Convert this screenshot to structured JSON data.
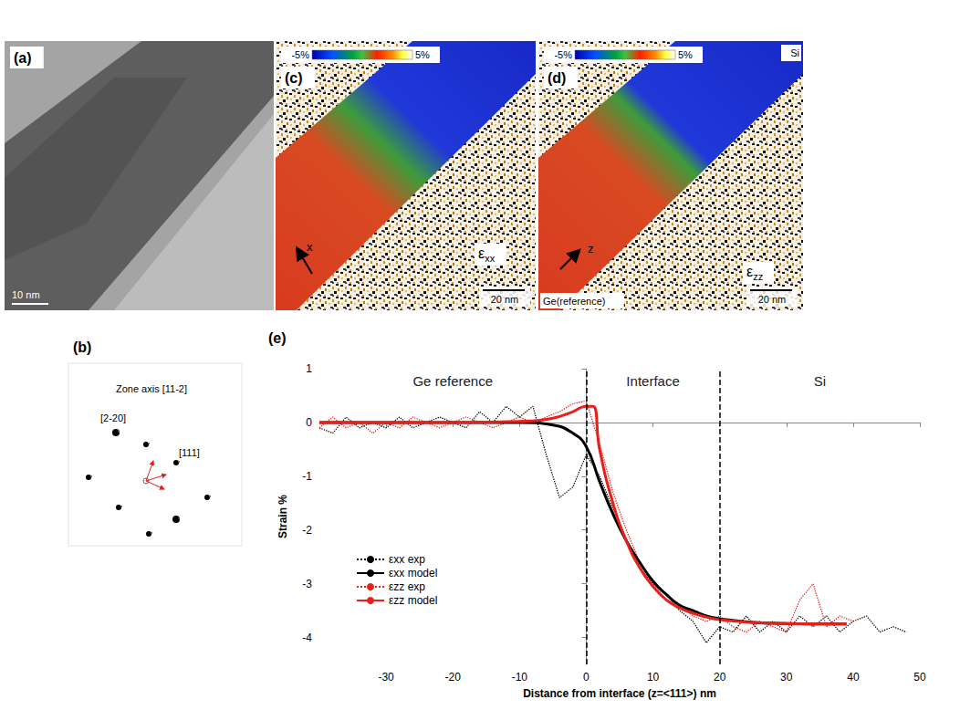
{
  "panels": {
    "a": {
      "label": "(a)",
      "scale_bar": "10 nm"
    },
    "b": {
      "label": "(b)",
      "title": "Zone axis [11-2]",
      "spot_labels": [
        "[2-20]",
        "[111]"
      ]
    },
    "c": {
      "label": "(c)",
      "colorbar": {
        "range": [
          -5,
          5
        ],
        "ticks": [
          {
            "value": -5,
            "label": "-5%"
          },
          {
            "value": 5,
            "label": "5%"
          }
        ]
      },
      "arrow": "x",
      "component": "εxx",
      "scale_bar": "20 nm"
    },
    "d": {
      "label": "(d)",
      "colorbar": {
        "range": [
          -5,
          5
        ],
        "ticks": [
          {
            "value": -5,
            "label": "-5%"
          },
          {
            "value": 5,
            "label": "5%"
          }
        ]
      },
      "arrow": "z",
      "component": "εzz",
      "scale_bar": "20 nm",
      "material_top": "Si",
      "material_bottom": "Ge(reference)"
    }
  },
  "chart_data": {
    "type": "line",
    "label": "(e)",
    "x_label": "Distance from interface (z=<111>) nm",
    "y_label": "Strain %",
    "xlim": [
      -40,
      50
    ],
    "xticks": [
      -30,
      -20,
      -10,
      0,
      10,
      20,
      30,
      40,
      50
    ],
    "ylim": [
      -4.5,
      1
    ],
    "yticks": [
      -4,
      -3,
      -2,
      -1,
      0,
      1
    ],
    "grid": false,
    "legend": "lower left",
    "dividers": [
      0,
      20
    ],
    "regions": [
      "Ge reference",
      "Interface",
      "Si"
    ],
    "series": [
      {
        "name": "εxx exp",
        "color": "#000000",
        "line_style": "dotted",
        "x": [
          -40,
          -38,
          -36,
          -34,
          -32,
          -30,
          -28,
          -26,
          -24,
          -22,
          -20,
          -18,
          -16,
          -14,
          -12,
          -10,
          -8,
          -6,
          -4,
          -2,
          0,
          2,
          4,
          6,
          8,
          10,
          12,
          14,
          16,
          18,
          20,
          22,
          24,
          26,
          28,
          30,
          32,
          34,
          36,
          38,
          40,
          42,
          44,
          46,
          48
        ],
        "values": [
          -0.1,
          -0.2,
          0.1,
          -0.1,
          0.0,
          -0.1,
          0.1,
          -0.1,
          0.0,
          0.1,
          0.0,
          -0.1,
          0.2,
          0.0,
          0.3,
          0.1,
          0.3,
          -0.6,
          -1.4,
          -1.2,
          -0.6,
          -1.0,
          -1.6,
          -2.2,
          -2.7,
          -3.0,
          -3.2,
          -3.5,
          -3.7,
          -4.1,
          -3.8,
          -3.9,
          -3.6,
          -3.9,
          -3.7,
          -3.9,
          -3.6,
          -3.8,
          -3.6,
          -3.9,
          -3.7,
          -3.6,
          -3.9,
          -3.8,
          -3.9
        ]
      },
      {
        "name": "εxx model",
        "color": "#000000",
        "line_style": "solid",
        "x": [
          -40,
          -30,
          -20,
          -10,
          -5,
          -2,
          0,
          2,
          4,
          6,
          8,
          10,
          12,
          14,
          16,
          18,
          20,
          25,
          30,
          35,
          39
        ],
        "values": [
          0,
          0,
          0,
          0,
          -0.05,
          -0.2,
          -0.45,
          -1.1,
          -1.7,
          -2.2,
          -2.6,
          -2.95,
          -3.2,
          -3.4,
          -3.5,
          -3.6,
          -3.65,
          -3.72,
          -3.74,
          -3.75,
          -3.75
        ]
      },
      {
        "name": "εzz exp",
        "color": "#e8201a",
        "line_style": "dotted",
        "x": [
          -40,
          -38,
          -36,
          -34,
          -32,
          -30,
          -28,
          -26,
          -24,
          -22,
          -20,
          -18,
          -16,
          -14,
          -12,
          -10,
          -8,
          -6,
          -4,
          -2,
          0,
          2,
          4,
          6,
          8,
          10,
          12,
          14,
          16,
          18,
          20,
          22,
          24,
          26,
          28,
          30,
          32,
          34,
          36,
          38,
          40
        ],
        "values": [
          -0.1,
          0.1,
          -0.1,
          0.0,
          -0.2,
          0.0,
          -0.1,
          0.1,
          0.0,
          -0.1,
          0.0,
          0.1,
          0.0,
          -0.1,
          0.0,
          0.1,
          0.0,
          0.1,
          0.2,
          0.35,
          0.4,
          -0.4,
          -1.3,
          -2.0,
          -2.6,
          -3.0,
          -3.3,
          -3.4,
          -3.6,
          -3.7,
          -3.6,
          -3.8,
          -3.9,
          -3.7,
          -3.8,
          -3.9,
          -3.3,
          -3.0,
          -3.8,
          -3.6,
          -3.7
        ]
      },
      {
        "name": "εzz model",
        "color": "#e8201a",
        "line_style": "solid",
        "x": [
          -40,
          -30,
          -20,
          -10,
          -5,
          -2,
          0,
          1,
          2,
          4,
          6,
          8,
          10,
          12,
          14,
          16,
          18,
          20,
          25,
          30,
          39
        ],
        "values": [
          0,
          0,
          0,
          0.02,
          0.08,
          0.2,
          0.3,
          0.3,
          -0.5,
          -1.5,
          -2.2,
          -2.7,
          -3.05,
          -3.3,
          -3.45,
          -3.55,
          -3.62,
          -3.67,
          -3.72,
          -3.74,
          -3.75
        ]
      }
    ]
  }
}
